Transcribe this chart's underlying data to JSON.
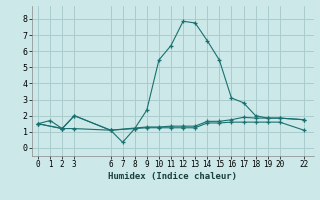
{
  "xlabel": "Humidex (Indice chaleur)",
  "bg_color": "#cce8e8",
  "grid_color": "#aacccc",
  "line_color": "#1a7070",
  "xlim": [
    -0.5,
    22.8
  ],
  "ylim": [
    -0.5,
    8.8
  ],
  "xticks": [
    0,
    1,
    2,
    3,
    6,
    7,
    8,
    9,
    10,
    11,
    12,
    13,
    14,
    15,
    16,
    17,
    18,
    19,
    20,
    22
  ],
  "yticks": [
    0,
    1,
    2,
    3,
    4,
    5,
    6,
    7,
    8
  ],
  "series1_x": [
    0,
    1,
    2,
    3,
    6,
    7,
    8,
    9,
    10,
    11,
    12,
    13,
    14,
    15,
    16,
    17,
    18,
    19,
    20,
    22
  ],
  "series1_y": [
    1.5,
    1.7,
    1.2,
    1.2,
    1.1,
    0.35,
    1.2,
    1.25,
    1.25,
    1.25,
    1.25,
    1.25,
    1.55,
    1.55,
    1.6,
    1.6,
    1.6,
    1.6,
    1.6,
    1.1
  ],
  "series2_x": [
    0,
    2,
    3,
    6,
    9,
    10,
    11,
    12,
    13,
    14,
    15,
    16,
    17,
    18,
    19,
    20,
    22
  ],
  "series2_y": [
    1.5,
    1.2,
    2.0,
    1.1,
    1.3,
    1.3,
    1.35,
    1.35,
    1.35,
    1.65,
    1.65,
    1.75,
    1.9,
    1.85,
    1.85,
    1.85,
    1.75
  ],
  "series3_x": [
    0,
    2,
    3,
    6,
    8,
    9,
    10,
    11,
    12,
    13,
    14,
    15,
    16,
    17,
    18,
    19,
    20,
    22
  ],
  "series3_y": [
    1.5,
    1.2,
    2.0,
    1.1,
    1.2,
    2.35,
    5.45,
    6.35,
    7.85,
    7.75,
    6.65,
    5.45,
    3.1,
    2.8,
    2.0,
    1.85,
    1.85,
    1.75
  ]
}
